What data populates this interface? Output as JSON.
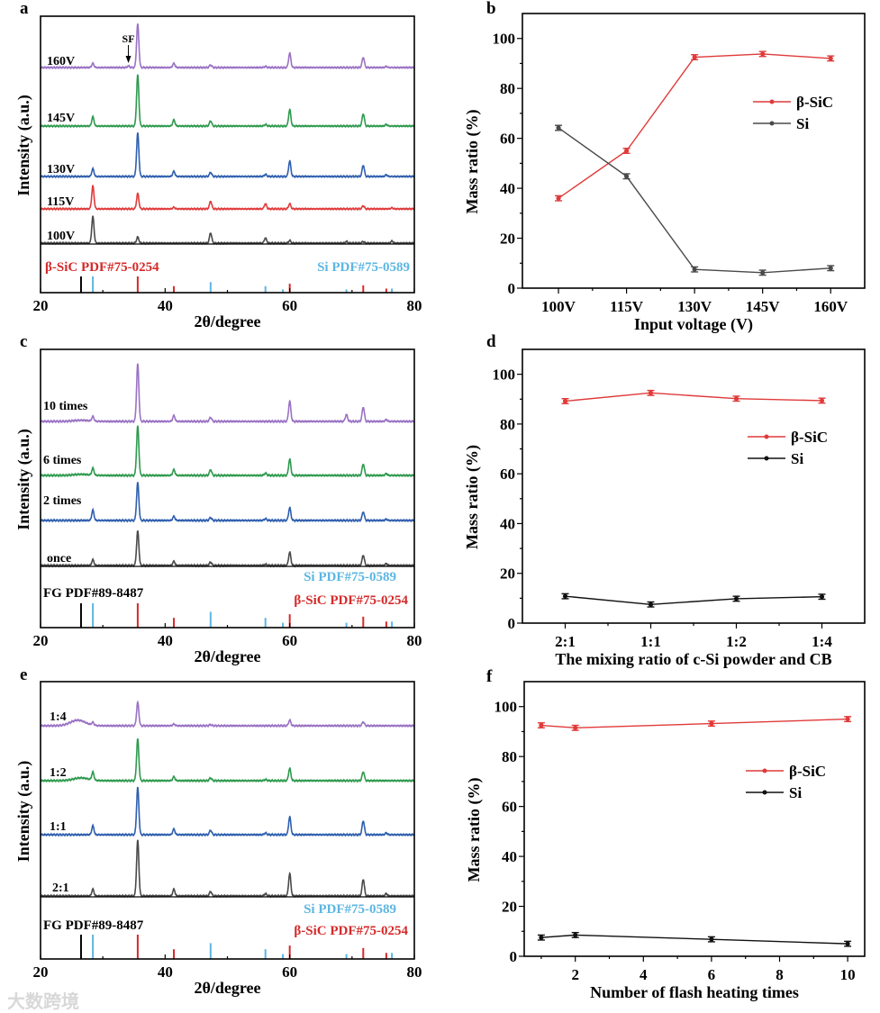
{
  "watermark": "大数跨境",
  "chart_data": [
    {
      "panel": "a",
      "type": "line",
      "subtype": "xrd",
      "xlabel": "2θ/degree",
      "ylabel": "Intensity (a.u.)",
      "xlim": [
        20,
        80
      ],
      "xticks": [
        20,
        40,
        60,
        80
      ],
      "annotation": "SF",
      "annotation_x": 34.1,
      "series": [
        {
          "name": "100V",
          "color": "#4a4a4a",
          "peaks": [
            [
              28.4,
              0.52
            ],
            [
              35.6,
              0.12
            ],
            [
              47.3,
              0.2
            ],
            [
              56.1,
              0.1
            ],
            [
              60,
              0.05
            ],
            [
              69.1,
              0.03
            ],
            [
              71.8,
              0.03
            ],
            [
              76.4,
              0.04
            ]
          ]
        },
        {
          "name": "115V",
          "color": "#e03a3a",
          "peaks": [
            [
              28.4,
              0.45
            ],
            [
              35.6,
              0.3
            ],
            [
              41.4,
              0.03
            ],
            [
              47.3,
              0.15
            ],
            [
              56.1,
              0.1
            ],
            [
              60,
              0.1
            ],
            [
              71.8,
              0.06
            ],
            [
              76.4,
              0.02
            ]
          ]
        },
        {
          "name": "130V",
          "color": "#2f5fae",
          "peaks": [
            [
              28.4,
              0.15
            ],
            [
              35.6,
              0.85
            ],
            [
              41.4,
              0.1
            ],
            [
              47.3,
              0.08
            ],
            [
              56.1,
              0.04
            ],
            [
              60,
              0.3
            ],
            [
              71.8,
              0.22
            ],
            [
              75.5,
              0.03
            ]
          ]
        },
        {
          "name": "145V",
          "color": "#2e9a4e",
          "peaks": [
            [
              28.4,
              0.18
            ],
            [
              35.6,
              1.0
            ],
            [
              41.4,
              0.12
            ],
            [
              47.3,
              0.1
            ],
            [
              56.1,
              0.03
            ],
            [
              60,
              0.32
            ],
            [
              71.8,
              0.24
            ],
            [
              75.5,
              0.03
            ]
          ]
        },
        {
          "name": "160V",
          "color": "#9a72c4",
          "peaks": [
            [
              28.4,
              0.08
            ],
            [
              34.1,
              0.03
            ],
            [
              35.6,
              0.85
            ],
            [
              41.4,
              0.08
            ],
            [
              47.3,
              0.05
            ],
            [
              56.1,
              0.02
            ],
            [
              60,
              0.28
            ],
            [
              71.8,
              0.2
            ],
            [
              75.5,
              0.02
            ]
          ]
        }
      ],
      "references": [
        {
          "name": "FG",
          "label": "",
          "color": "#000000",
          "lines": [
            [
              26.5,
              1.0
            ]
          ]
        },
        {
          "name": "β-SiC",
          "label": "β-SiC PDF#75-0254",
          "color": "#d42a2a",
          "lines": [
            [
              35.6,
              1.0
            ],
            [
              41.4,
              0.4
            ],
            [
              60,
              0.55
            ],
            [
              71.8,
              0.45
            ],
            [
              75.5,
              0.25
            ]
          ]
        },
        {
          "name": "Si",
          "label": "Si PDF#75-0589",
          "color": "#5cb6e2",
          "lines": [
            [
              28.4,
              1.0
            ],
            [
              47.3,
              0.65
            ],
            [
              56.1,
              0.4
            ],
            [
              58.9,
              0.2
            ],
            [
              69.1,
              0.2
            ],
            [
              76.4,
              0.25
            ]
          ]
        }
      ]
    },
    {
      "panel": "b",
      "type": "line",
      "xlabel": "Input voltage (V)",
      "ylabel": "Mass ratio (%)",
      "categories": [
        "100V",
        "115V",
        "130V",
        "145V",
        "160V"
      ],
      "ylim": [
        0,
        110
      ],
      "yticks": [
        0,
        20,
        40,
        60,
        80,
        100
      ],
      "legend": "right",
      "series": [
        {
          "name": "β-SiC",
          "color": "#e03a3a",
          "values": [
            36,
            55,
            92.5,
            93.8,
            92
          ],
          "error": 1
        },
        {
          "name": "Si",
          "color": "#4a4a4a",
          "values": [
            64.2,
            44.8,
            7.5,
            6.2,
            8
          ],
          "error": 1
        }
      ]
    },
    {
      "panel": "c",
      "type": "line",
      "subtype": "xrd",
      "xlabel": "2θ/degree",
      "ylabel": "Intensity (a.u.)",
      "xlim": [
        20,
        80
      ],
      "xticks": [
        20,
        40,
        60,
        80
      ],
      "series": [
        {
          "name": "once",
          "color": "#4a4a4a",
          "peaks": [
            [
              28.4,
              0.1
            ],
            [
              35.6,
              0.6
            ],
            [
              41.4,
              0.07
            ],
            [
              47.3,
              0.06
            ],
            [
              56.1,
              0.02
            ],
            [
              60,
              0.23
            ],
            [
              71.8,
              0.18
            ],
            [
              75.5,
              0.03
            ]
          ]
        },
        {
          "name": "2 times",
          "color": "#2f5fae",
          "peaks": [
            [
              28.4,
              0.18
            ],
            [
              35.6,
              0.66
            ],
            [
              41.4,
              0.07
            ],
            [
              47.3,
              0.05
            ],
            [
              56.1,
              0.03
            ],
            [
              60,
              0.22
            ],
            [
              71.8,
              0.15
            ],
            [
              75.5,
              0.02
            ]
          ]
        },
        {
          "name": "6 times",
          "color": "#2e9a4e",
          "peaks": [
            [
              26.5,
              0.02
            ],
            [
              28.4,
              0.12
            ],
            [
              35.6,
              0.86
            ],
            [
              41.4,
              0.1
            ],
            [
              47.3,
              0.1
            ],
            [
              56.1,
              0.04
            ],
            [
              60,
              0.28
            ],
            [
              71.8,
              0.2
            ],
            [
              75.5,
              0.03
            ]
          ]
        },
        {
          "name": "10 times",
          "color": "#9a72c4",
          "peaks": [
            [
              26.5,
              0.02
            ],
            [
              28.4,
              0.08
            ],
            [
              35.6,
              1.0
            ],
            [
              41.4,
              0.1
            ],
            [
              47.3,
              0.07
            ],
            [
              60,
              0.35
            ],
            [
              69.1,
              0.12
            ],
            [
              71.8,
              0.25
            ],
            [
              75.5,
              0.03
            ]
          ]
        }
      ],
      "references": [
        {
          "name": "FG",
          "label": "FG PDF#89-8487",
          "color": "#000000",
          "lines": [
            [
              26.5,
              1.0
            ]
          ]
        },
        {
          "name": "Si",
          "label": "Si PDF#75-0589",
          "color": "#5cb6e2",
          "lines": [
            [
              28.4,
              1.0
            ],
            [
              47.3,
              0.65
            ],
            [
              56.1,
              0.4
            ],
            [
              58.9,
              0.2
            ],
            [
              69.1,
              0.2
            ],
            [
              76.4,
              0.25
            ]
          ]
        },
        {
          "name": "β-SiC",
          "label": "β-SiC PDF#75-0254",
          "color": "#d42a2a",
          "lines": [
            [
              35.6,
              1.0
            ],
            [
              41.4,
              0.4
            ],
            [
              60,
              0.55
            ],
            [
              71.8,
              0.45
            ],
            [
              75.5,
              0.25
            ]
          ]
        }
      ]
    },
    {
      "panel": "d",
      "type": "line",
      "xlabel": "The mixing ratio of c-Si powder and CB",
      "ylabel": "Mass ratio (%)",
      "categories": [
        "2:1",
        "1:1",
        "1:2",
        "1:4"
      ],
      "ylim": [
        0,
        110
      ],
      "yticks": [
        0,
        20,
        40,
        60,
        80,
        100
      ],
      "legend": "right",
      "series": [
        {
          "name": "β-SiC",
          "color": "#e03a3a",
          "values": [
            89.2,
            92.5,
            90.2,
            89.4
          ],
          "error": 1
        },
        {
          "name": "Si",
          "color": "#111111",
          "values": [
            10.8,
            7.5,
            9.8,
            10.6
          ],
          "error": 1
        }
      ]
    },
    {
      "panel": "e",
      "type": "line",
      "subtype": "xrd",
      "xlabel": "2θ/degree",
      "ylabel": "Intensity (a.u.)",
      "xlim": [
        20,
        80
      ],
      "xticks": [
        20,
        40,
        60,
        80
      ],
      "series": [
        {
          "name": "2:1",
          "color": "#4a4a4a",
          "peaks": [
            [
              28.4,
              0.12
            ],
            [
              35.6,
              1.0
            ],
            [
              41.4,
              0.12
            ],
            [
              47.3,
              0.08
            ],
            [
              56.1,
              0.04
            ],
            [
              60,
              0.4
            ],
            [
              71.8,
              0.3
            ],
            [
              75.5,
              0.04
            ]
          ]
        },
        {
          "name": "1:1",
          "color": "#2f5fae",
          "peaks": [
            [
              28.4,
              0.16
            ],
            [
              35.6,
              0.85
            ],
            [
              41.4,
              0.1
            ],
            [
              47.3,
              0.08
            ],
            [
              56.1,
              0.03
            ],
            [
              60,
              0.32
            ],
            [
              71.8,
              0.25
            ],
            [
              75.5,
              0.03
            ]
          ]
        },
        {
          "name": "1:2",
          "color": "#2e9a4e",
          "peaks": [
            [
              26.5,
              0.05
            ],
            [
              28.4,
              0.14
            ],
            [
              35.6,
              0.75
            ],
            [
              41.4,
              0.07
            ],
            [
              47.3,
              0.05
            ],
            [
              56.1,
              0.02
            ],
            [
              60,
              0.22
            ],
            [
              71.8,
              0.16
            ]
          ]
        },
        {
          "name": "1:4",
          "color": "#9a72c4",
          "peaks": [
            [
              26,
              0.1
            ],
            [
              28.4,
              0.05
            ],
            [
              35.6,
              0.42
            ],
            [
              41.4,
              0.03
            ],
            [
              47.3,
              0.02
            ],
            [
              60,
              0.1
            ],
            [
              71.8,
              0.07
            ]
          ]
        }
      ],
      "references": [
        {
          "name": "FG",
          "label": "FG PDF#89-8487",
          "color": "#000000",
          "lines": [
            [
              26.5,
              1.0
            ]
          ]
        },
        {
          "name": "Si",
          "label": "Si PDF#75-0589",
          "color": "#5cb6e2",
          "lines": [
            [
              28.4,
              1.0
            ],
            [
              47.3,
              0.65
            ],
            [
              56.1,
              0.4
            ],
            [
              58.9,
              0.2
            ],
            [
              69.1,
              0.2
            ],
            [
              76.4,
              0.25
            ]
          ]
        },
        {
          "name": "β-SiC",
          "label": "β-SiC PDF#75-0254",
          "color": "#d42a2a",
          "lines": [
            [
              35.6,
              1.0
            ],
            [
              41.4,
              0.4
            ],
            [
              60,
              0.55
            ],
            [
              71.8,
              0.45
            ],
            [
              75.5,
              0.25
            ]
          ]
        }
      ]
    },
    {
      "panel": "f",
      "type": "line",
      "xlabel": "Number of  flash heating times",
      "ylabel": "Mass ratio (%)",
      "x": [
        1,
        2,
        6,
        10
      ],
      "xlim": [
        0.5,
        10.5
      ],
      "xticks": [
        2,
        4,
        6,
        8,
        10
      ],
      "ylim": [
        0,
        110
      ],
      "yticks": [
        0,
        20,
        40,
        60,
        80,
        100
      ],
      "legend": "right",
      "series": [
        {
          "name": "β-SiC",
          "color": "#e03a3a",
          "values": [
            92.5,
            91.5,
            93.2,
            95
          ],
          "error": 1
        },
        {
          "name": "Si",
          "color": "#111111",
          "values": [
            7.5,
            8.5,
            6.8,
            5
          ],
          "error": 1
        }
      ]
    }
  ]
}
